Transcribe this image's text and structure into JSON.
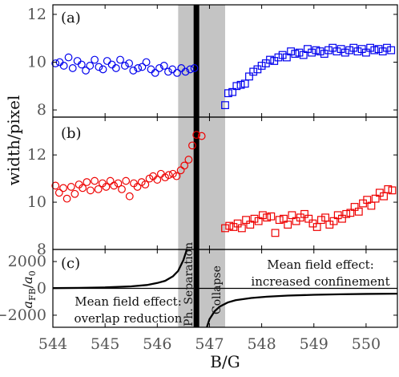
{
  "chart_data": [
    {
      "panel": "(a)",
      "type": "scatter",
      "ylabel": "width/pixel",
      "xlabel": "B/G",
      "xlim": [
        544,
        550.6
      ],
      "ylim": [
        7.7,
        12.4
      ],
      "yticks": [
        8,
        10,
        12
      ],
      "series": [
        {
          "marker": "circle",
          "color": "#0000ee",
          "x": [
            544.05,
            544.13,
            544.21,
            544.3,
            544.38,
            544.47,
            544.55,
            544.63,
            544.71,
            544.8,
            544.88,
            544.96,
            545.04,
            545.13,
            545.21,
            545.29,
            545.38,
            545.46,
            545.54,
            545.63,
            545.71,
            545.79,
            545.88,
            545.96,
            546.04,
            546.13,
            546.21,
            546.29,
            546.38,
            546.46,
            546.54,
            546.63,
            546.71
          ],
          "y": [
            9.95,
            10.0,
            9.85,
            10.2,
            9.75,
            10.05,
            9.9,
            9.65,
            9.85,
            10.1,
            9.8,
            9.7,
            10.05,
            9.9,
            9.75,
            10.1,
            9.85,
            9.95,
            9.65,
            9.75,
            9.8,
            10.0,
            9.7,
            9.55,
            9.75,
            9.85,
            9.6,
            9.7,
            9.55,
            9.75,
            9.6,
            9.7,
            9.75
          ]
        },
        {
          "marker": "square",
          "color": "#0000ee",
          "x": [
            547.3,
            547.36,
            547.44,
            547.52,
            547.6,
            547.68,
            547.76,
            547.84,
            547.92,
            548.0,
            548.08,
            548.16,
            548.24,
            548.32,
            548.4,
            548.48,
            548.56,
            548.64,
            548.72,
            548.8,
            548.88,
            548.96,
            549.04,
            549.12,
            549.2,
            549.28,
            549.36,
            549.44,
            549.52,
            549.6,
            549.68,
            549.76,
            549.84,
            549.92,
            550.0,
            550.08,
            550.16,
            550.24,
            550.32,
            550.4,
            550.48
          ],
          "y": [
            8.2,
            8.7,
            8.75,
            9.0,
            9.05,
            9.1,
            9.4,
            9.6,
            9.7,
            9.85,
            9.95,
            10.1,
            10.05,
            10.2,
            10.3,
            10.2,
            10.45,
            10.35,
            10.4,
            10.3,
            10.55,
            10.4,
            10.5,
            10.45,
            10.35,
            10.5,
            10.6,
            10.45,
            10.55,
            10.4,
            10.5,
            10.6,
            10.45,
            10.55,
            10.4,
            10.6,
            10.5,
            10.55,
            10.45,
            10.6,
            10.5
          ]
        }
      ]
    },
    {
      "panel": "(b)",
      "type": "scatter",
      "ylabel": "width/pixel",
      "xlabel": "B/G",
      "xlim": [
        544,
        550.6
      ],
      "ylim": [
        8,
        13.6
      ],
      "yticks": [
        8,
        10,
        12
      ],
      "series": [
        {
          "marker": "circle",
          "color": "#ee0000",
          "x": [
            544.05,
            544.12,
            544.2,
            544.27,
            544.35,
            544.42,
            544.5,
            544.57,
            544.65,
            544.72,
            544.8,
            544.87,
            544.95,
            545.02,
            545.1,
            545.17,
            545.25,
            545.32,
            545.4,
            545.47,
            545.55,
            545.62,
            545.7,
            545.77,
            545.85,
            545.92,
            546.0,
            546.07,
            546.15,
            546.22,
            546.3,
            546.37,
            546.45,
            546.52,
            546.6,
            546.67,
            546.75,
            546.85
          ],
          "y": [
            10.7,
            10.4,
            10.6,
            10.15,
            10.65,
            10.35,
            10.75,
            10.6,
            10.85,
            10.5,
            10.9,
            10.55,
            10.8,
            10.65,
            10.9,
            10.7,
            10.8,
            10.55,
            10.9,
            10.25,
            10.8,
            10.65,
            10.85,
            10.75,
            11.0,
            11.1,
            10.95,
            11.2,
            11.05,
            11.15,
            11.2,
            11.1,
            11.35,
            11.55,
            11.8,
            12.4,
            12.85,
            12.8
          ]
        },
        {
          "marker": "square",
          "color": "#ee0000",
          "x": [
            547.3,
            547.38,
            547.46,
            547.54,
            547.62,
            547.7,
            547.78,
            547.86,
            547.94,
            548.02,
            548.1,
            548.18,
            548.26,
            548.34,
            548.42,
            548.5,
            548.58,
            548.66,
            548.74,
            548.82,
            548.9,
            548.98,
            549.06,
            549.14,
            549.22,
            549.3,
            549.38,
            549.46,
            549.54,
            549.62,
            549.7,
            549.78,
            549.86,
            549.94,
            550.02,
            550.1,
            550.18,
            550.26,
            550.34,
            550.42,
            550.5
          ],
          "y": [
            8.9,
            9.0,
            8.95,
            9.1,
            8.9,
            9.25,
            9.05,
            9.3,
            9.2,
            9.45,
            9.35,
            9.4,
            8.7,
            9.25,
            9.3,
            9.05,
            9.45,
            9.2,
            9.35,
            9.5,
            9.3,
            9.1,
            8.95,
            9.25,
            9.35,
            9.05,
            9.2,
            9.45,
            9.3,
            9.5,
            9.55,
            9.8,
            9.6,
            9.95,
            10.1,
            9.85,
            10.15,
            10.4,
            10.25,
            10.55,
            10.5
          ]
        }
      ]
    },
    {
      "panel": "(c)",
      "type": "line",
      "ylabel": "a_FB/a_0",
      "xlabel": "B/G",
      "xlim": [
        544,
        550.6
      ],
      "ylim": [
        -2900,
        2900
      ],
      "yticks": [
        -2000,
        0,
        2000
      ],
      "xticks": [
        544,
        545,
        546,
        547,
        548,
        549,
        550
      ],
      "resonance_B": 546.75,
      "series": [
        {
          "color": "#000000",
          "x": [
            544.0,
            544.5,
            545.0,
            545.5,
            545.8,
            546.0,
            546.15,
            546.3,
            546.4,
            546.5,
            546.55,
            546.6
          ],
          "y": [
            20,
            35,
            70,
            150,
            250,
            400,
            560,
            900,
            1300,
            2100,
            2700,
            3400
          ]
        },
        {
          "color": "#000000",
          "x": [
            546.9,
            546.95,
            547.0,
            547.1,
            547.2,
            547.35,
            547.5,
            547.8,
            548.1,
            548.5,
            549.0,
            549.5,
            550.0,
            550.6
          ],
          "y": [
            -3800,
            -2900,
            -2300,
            -1700,
            -1350,
            -1050,
            -880,
            -720,
            -620,
            -540,
            -480,
            -440,
            -415,
            -395
          ]
        }
      ],
      "annotations": [
        {
          "text_lines": [
            "Mean field effect:",
            "increased confinement"
          ]
        },
        {
          "text_lines": [
            "Mean field effect:",
            "overlap reduction"
          ]
        },
        {
          "text": "Ph. Separation"
        },
        {
          "text": "Collapse"
        }
      ]
    }
  ],
  "shared": {
    "ylabel_ab": "width/pixel",
    "ylabel_c_main": "a",
    "ylabel_c_sub": "FB",
    "ylabel_c_den": "a",
    "ylabel_c_den_sub": "0",
    "xlabel": "B/G",
    "gray_band": [
      546.4,
      547.3
    ],
    "black_line_B": 546.75
  }
}
